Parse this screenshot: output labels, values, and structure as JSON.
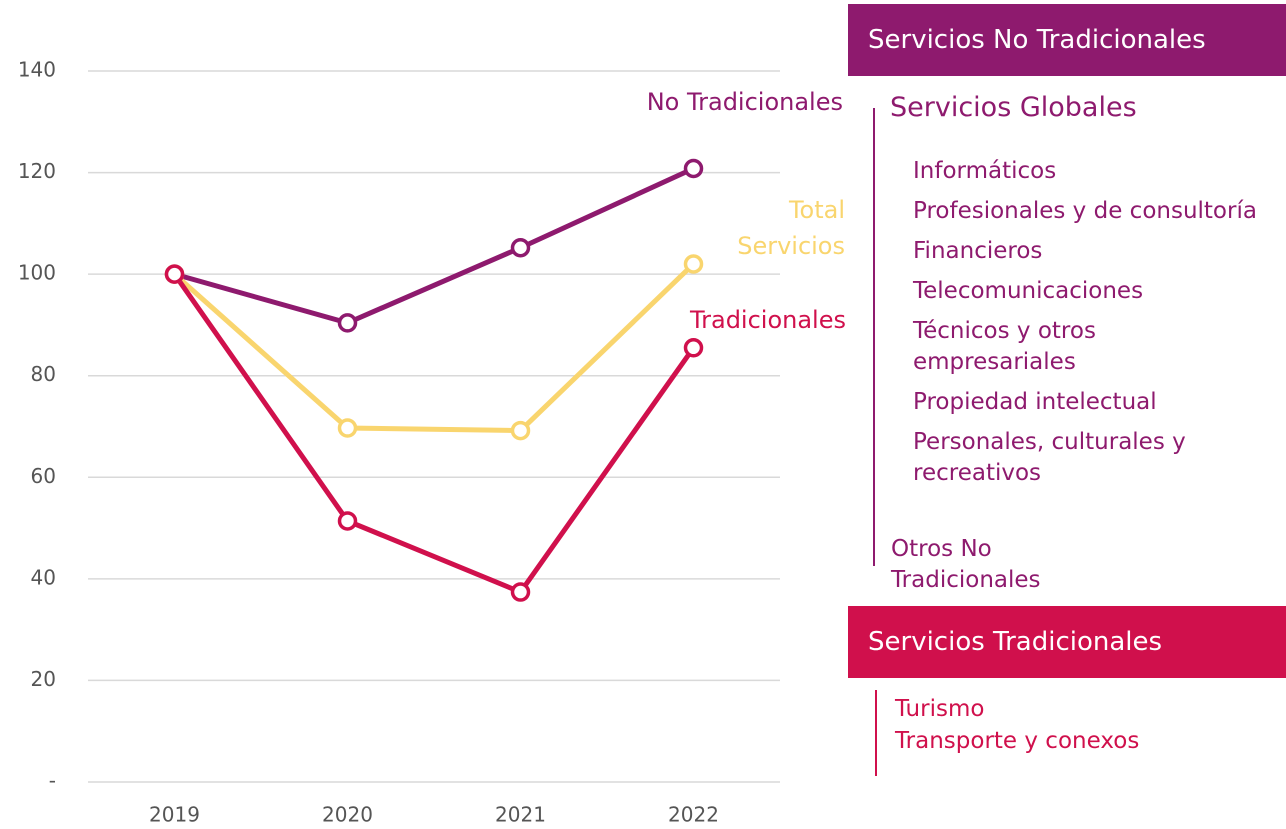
{
  "chart_data": {
    "type": "line",
    "categories": [
      "2019",
      "2020",
      "2021",
      "2022"
    ],
    "series": [
      {
        "name": "No Tradicionales",
        "color": "#8e1a6e",
        "values": [
          100,
          90.4,
          105.2,
          120.8
        ]
      },
      {
        "name": "Total Servicios",
        "color": "#f9d56e",
        "values": [
          100,
          69.7,
          69.2,
          102
        ]
      },
      {
        "name": "Tradicionales",
        "color": "#d0104c",
        "values": [
          100,
          51.4,
          37.4,
          85.5
        ]
      }
    ],
    "ylim": [
      0,
      140
    ],
    "yticks": [
      {
        "value": 0,
        "label": "-"
      },
      20,
      40,
      60,
      80,
      100,
      120,
      140
    ],
    "grid": true
  },
  "panel": {
    "sections": [
      {
        "title": "Servicios No Tradicionales",
        "groups": [
          {
            "title": "Servicios Globales",
            "items": [
              "Informáticos",
              "Profesionales y de consultoría",
              "Financieros",
              "Telecomunicaciones",
              "Técnicos y otros empresariales",
              "Propiedad intelectual",
              "Personales, culturales y recreativos"
            ]
          },
          {
            "title": "Otros No Tradicionales"
          }
        ]
      },
      {
        "title": "Servicios Tradicionales",
        "items": [
          "Turismo",
          "Transporte y conexos"
        ]
      }
    ]
  }
}
